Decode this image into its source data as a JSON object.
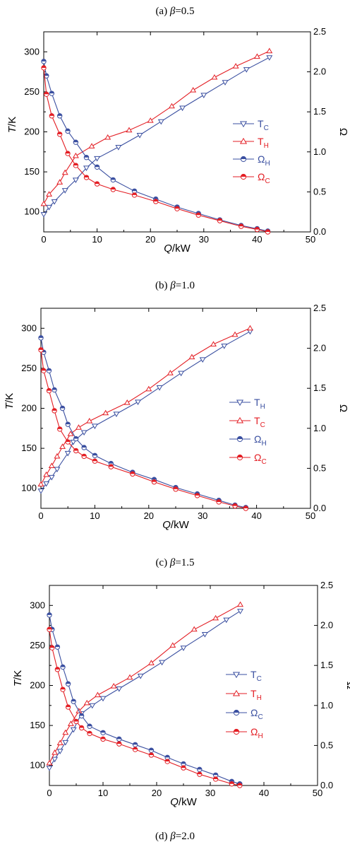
{
  "colors": {
    "blue": "#3a4fa0",
    "red": "#e31e24",
    "axis": "#000000"
  },
  "chart_data": [
    {
      "type": "line",
      "caption": {
        "prefix": "(a) ",
        "symbol": "β",
        "suffix": "=0.5"
      },
      "xlabel": {
        "italic": "Q",
        "rest": "/kW"
      },
      "ylabel": {
        "italic": "T",
        "rest": "/K"
      },
      "y2label": "Ω",
      "xlim": [
        0,
        50
      ],
      "ylim": [
        75,
        325
      ],
      "y2lim": [
        0,
        2.5
      ],
      "xticks": [
        0,
        10,
        20,
        30,
        40,
        50
      ],
      "yticks": [
        100,
        150,
        200,
        250,
        300
      ],
      "y2ticks": [
        "0.0",
        "0.5",
        "1.0",
        "1.5",
        "2.0",
        "2.5"
      ],
      "series": [
        {
          "name": "T",
          "sub": "C",
          "axis": "left",
          "marker": "tri-down",
          "color": "blue",
          "x": [
            0,
            1,
            2,
            4,
            6,
            8,
            10,
            14,
            18,
            22,
            26,
            30,
            34,
            38,
            42.3
          ],
          "y": [
            97,
            106,
            113,
            127,
            140,
            155,
            167,
            181,
            196,
            213,
            230,
            246,
            262,
            278,
            293
          ]
        },
        {
          "name": "T",
          "sub": "H",
          "axis": "left",
          "marker": "tri-up",
          "color": "red",
          "x": [
            0,
            1,
            3,
            4,
            6,
            9,
            12,
            16,
            20,
            24,
            28,
            32,
            36,
            40,
            42.3
          ],
          "y": [
            110,
            122,
            137,
            149,
            170,
            182,
            193,
            202,
            214,
            232,
            252,
            268,
            282,
            294,
            301
          ]
        },
        {
          "name": "Ω",
          "sub": "H",
          "axis": "right",
          "marker": "circle",
          "color": "blue",
          "x": [
            0,
            0.5,
            1.5,
            3,
            4.5,
            6,
            8,
            10,
            13,
            17,
            21,
            25,
            29,
            33,
            37,
            40,
            42
          ],
          "y": [
            2.13,
            1.95,
            1.73,
            1.45,
            1.26,
            1.12,
            0.93,
            0.81,
            0.65,
            0.51,
            0.41,
            0.31,
            0.23,
            0.15,
            0.08,
            0.04,
            0.01
          ]
        },
        {
          "name": "Ω",
          "sub": "C",
          "axis": "right",
          "marker": "circle",
          "color": "red",
          "x": [
            0,
            0.5,
            1.5,
            3,
            4.5,
            6,
            8,
            10,
            13,
            17,
            21,
            25,
            29,
            33,
            37,
            40,
            42
          ],
          "y": [
            2.05,
            1.72,
            1.45,
            1.22,
            0.98,
            0.83,
            0.68,
            0.6,
            0.53,
            0.46,
            0.38,
            0.29,
            0.21,
            0.14,
            0.07,
            0.03,
            0.0
          ]
        }
      ]
    },
    {
      "type": "line",
      "caption": {
        "prefix": "(b) ",
        "symbol": "β",
        "suffix": "=1.0"
      },
      "xlabel": {
        "italic": "Q",
        "rest": "/kW"
      },
      "ylabel": {
        "italic": "T",
        "rest": "/K"
      },
      "y2label": "Ω",
      "xlim": [
        0,
        50
      ],
      "ylim": [
        75,
        325
      ],
      "y2lim": [
        0,
        2.5
      ],
      "xticks": [
        0,
        10,
        20,
        30,
        40,
        50
      ],
      "yticks": [
        100,
        150,
        200,
        250,
        300
      ],
      "y2ticks": [
        "0.0",
        "0.5",
        "1.0",
        "1.5",
        "2.0",
        "2.5"
      ],
      "series": [
        {
          "name": "T",
          "sub": "H",
          "axis": "left",
          "marker": "tri-down",
          "color": "blue",
          "x": [
            0,
            1,
            2,
            3,
            5,
            6,
            8,
            10,
            14,
            18,
            22,
            26,
            30,
            34,
            38.8
          ],
          "y": [
            97,
            106,
            114,
            124,
            144,
            158,
            170,
            178,
            193,
            208,
            226,
            244,
            261,
            278,
            296
          ]
        },
        {
          "name": "T",
          "sub": "C",
          "axis": "left",
          "marker": "tri-up",
          "color": "red",
          "x": [
            0,
            1,
            2,
            3,
            4,
            5.5,
            7,
            9,
            12,
            16,
            20,
            24,
            28,
            32,
            36,
            38.8
          ],
          "y": [
            105,
            117,
            128,
            140,
            152,
            168,
            176,
            184,
            194,
            207,
            224,
            244,
            264,
            280,
            292,
            300
          ]
        },
        {
          "name": "Ω",
          "sub": "H",
          "axis": "right",
          "marker": "circle",
          "color": "blue",
          "x": [
            0,
            0.5,
            1.5,
            2.5,
            4,
            5,
            6.5,
            8,
            10,
            13,
            17,
            21,
            25,
            29,
            33,
            36,
            38
          ],
          "y": [
            2.13,
            1.95,
            1.72,
            1.48,
            1.25,
            1.05,
            0.87,
            0.76,
            0.66,
            0.56,
            0.45,
            0.36,
            0.26,
            0.18,
            0.1,
            0.04,
            0.01
          ]
        },
        {
          "name": "Ω",
          "sub": "C",
          "axis": "right",
          "marker": "circle",
          "color": "red",
          "x": [
            0,
            0.5,
            1.5,
            2.5,
            3.5,
            5,
            6.5,
            8,
            10,
            13,
            17,
            21,
            25,
            29,
            33,
            36,
            38
          ],
          "y": [
            1.98,
            1.72,
            1.47,
            1.22,
            0.99,
            0.83,
            0.72,
            0.65,
            0.59,
            0.52,
            0.43,
            0.33,
            0.24,
            0.16,
            0.08,
            0.03,
            0.0
          ]
        }
      ]
    },
    {
      "type": "line",
      "caption": {
        "prefix": "(c) ",
        "symbol": "β",
        "suffix": "=1.5"
      },
      "xlabel": {
        "italic": "Q",
        "rest": "/kW"
      },
      "ylabel": {
        "italic": "T",
        "rest": "/K"
      },
      "y2label": "Ω",
      "xlim": [
        0,
        50
      ],
      "ylim": [
        75,
        325
      ],
      "y2lim": [
        0,
        2.5
      ],
      "xticks": [
        0,
        10,
        20,
        30,
        40,
        50
      ],
      "yticks": [
        100,
        150,
        200,
        250,
        300
      ],
      "y2ticks": [
        "0.0",
        "0.5",
        "1.0",
        "1.5",
        "2.0",
        "2.5"
      ],
      "series": [
        {
          "name": "T",
          "sub": "C",
          "axis": "left",
          "marker": "tri-down",
          "color": "blue",
          "x": [
            0,
            1,
            2,
            3,
            4.5,
            6,
            8,
            10,
            13,
            17,
            21,
            25,
            29,
            33,
            35.6
          ],
          "y": [
            97,
            108,
            118,
            129,
            145,
            165,
            175,
            184,
            196,
            212,
            229,
            247,
            264,
            282,
            293
          ]
        },
        {
          "name": "T",
          "sub": "H",
          "axis": "left",
          "marker": "tri-up",
          "color": "red",
          "x": [
            0,
            1,
            2,
            3,
            4,
            5.5,
            7,
            9,
            12,
            15,
            19,
            23,
            27,
            31,
            35.6
          ],
          "y": [
            103,
            116,
            128,
            141,
            152,
            168,
            178,
            188,
            199,
            210,
            228,
            250,
            270,
            284,
            301
          ]
        },
        {
          "name": "Ω",
          "sub": "C",
          "axis": "right",
          "marker": "circle",
          "color": "blue",
          "x": [
            0,
            0.5,
            1.5,
            2.5,
            3.5,
            4.5,
            6,
            7.5,
            10,
            13,
            16,
            19,
            22,
            25,
            28,
            31,
            34,
            35.5
          ],
          "y": [
            2.13,
            1.95,
            1.73,
            1.48,
            1.27,
            1.05,
            0.87,
            0.74,
            0.66,
            0.58,
            0.51,
            0.44,
            0.35,
            0.27,
            0.2,
            0.13,
            0.05,
            0.02
          ]
        },
        {
          "name": "Ω",
          "sub": "H",
          "axis": "right",
          "marker": "circle",
          "color": "red",
          "x": [
            0,
            0.5,
            1.5,
            2.5,
            3.5,
            5,
            6,
            7.5,
            10,
            13,
            16,
            19,
            22,
            25,
            28,
            31,
            34,
            35.5
          ],
          "y": [
            1.95,
            1.72,
            1.45,
            1.2,
            0.98,
            0.8,
            0.72,
            0.65,
            0.58,
            0.52,
            0.45,
            0.38,
            0.3,
            0.22,
            0.14,
            0.08,
            0.02,
            0.0
          ]
        }
      ]
    }
  ],
  "last_caption": {
    "prefix": "(d) ",
    "symbol": "β",
    "suffix": "=2.0"
  }
}
